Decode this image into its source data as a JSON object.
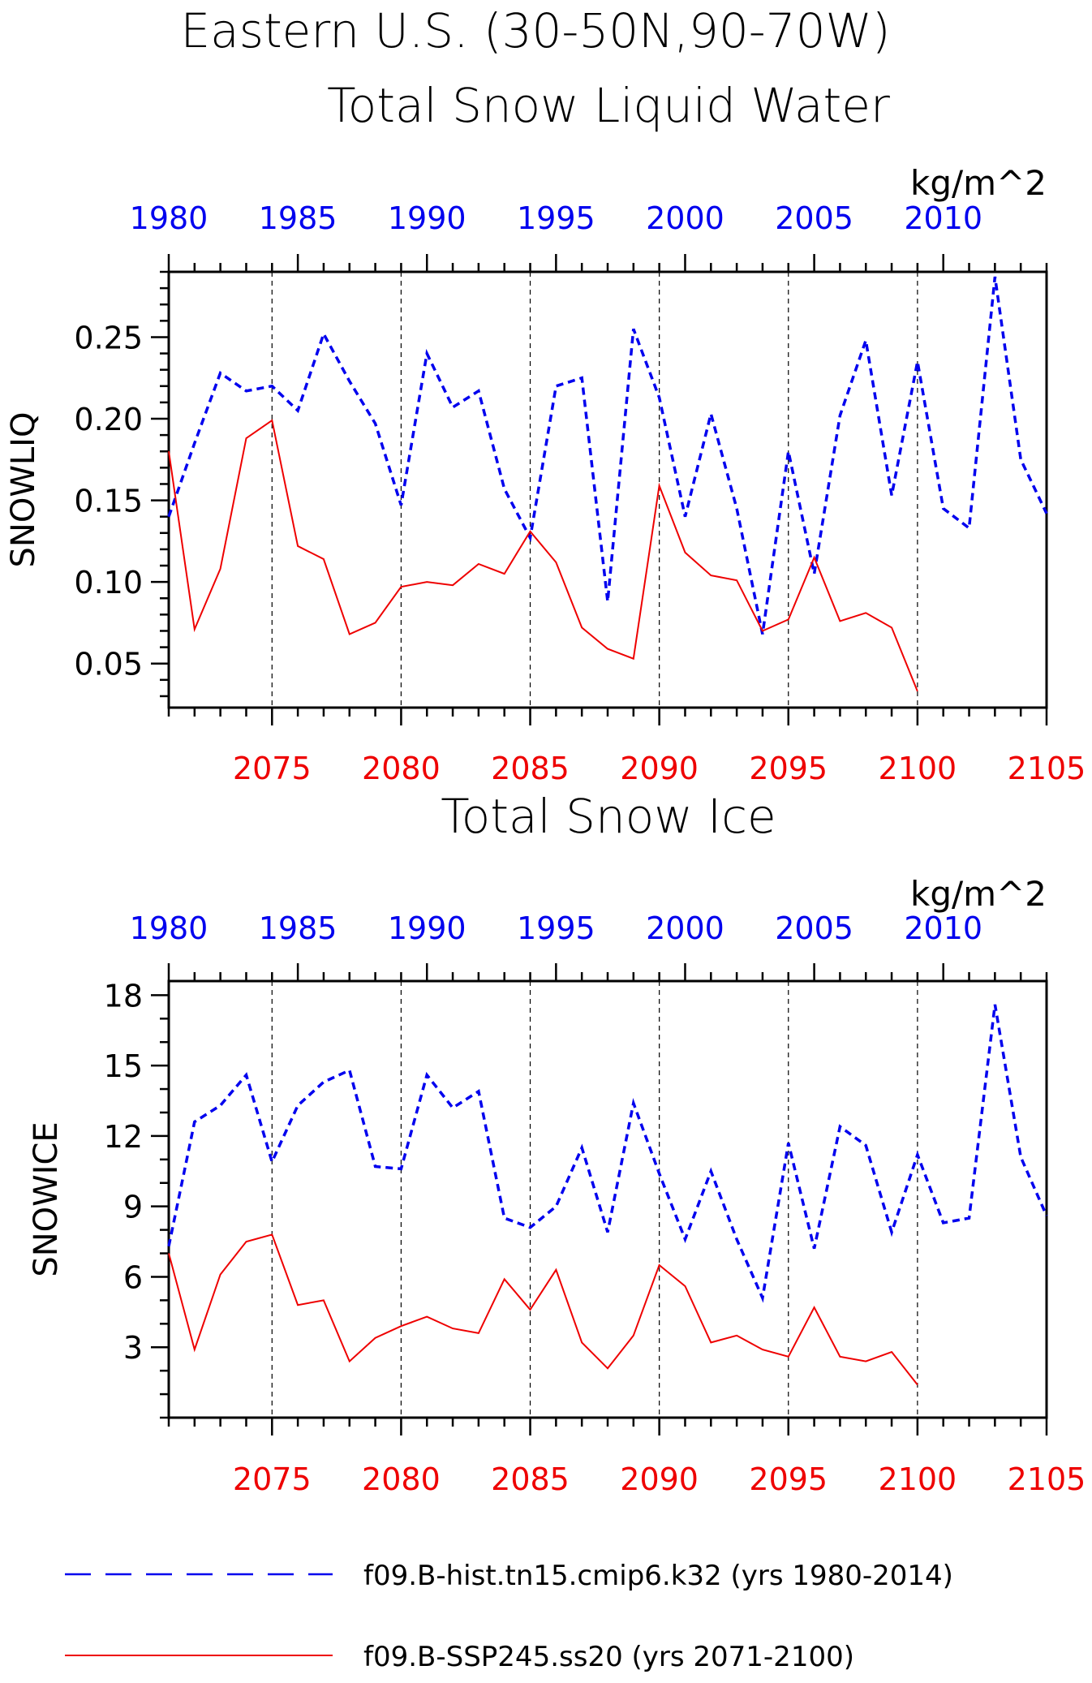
{
  "figure": {
    "title_line1": "Eastern U.S. (30-50N,90-70W)"
  },
  "colors": {
    "hist": "#0000ee",
    "ssp": "#ee0000",
    "axis": "#000000"
  },
  "legend": [
    {
      "label": "f09.B-hist.tn15.cmip6.k32 (yrs 1980-2014)",
      "color": "#0000ee",
      "style": "dashed"
    },
    {
      "label": "f09.B-SSP245.ss20 (yrs 2071-2100)",
      "color": "#ee0000",
      "style": "solid"
    }
  ],
  "chart_data": [
    {
      "type": "line",
      "title": "Total Snow Liquid Water",
      "units": "kg/m^2",
      "ylabel": "SNOWLIQ",
      "ylim": [
        0.023,
        0.29
      ],
      "yticks": [
        0.05,
        0.1,
        0.15,
        0.2,
        0.25
      ],
      "ytick_labels": [
        "0.05",
        "0.10",
        "0.15",
        "0.20",
        "0.25"
      ],
      "ytick_minor_step": 0.01,
      "grid_x": "dashed vertical at bottom-axis major ticks",
      "top_axis": {
        "range": [
          1980,
          2014
        ],
        "ticks": [
          1980,
          1985,
          1990,
          1995,
          2000,
          2005,
          2010
        ],
        "color": "#0000ee"
      },
      "bottom_axis": {
        "range": [
          2071,
          2105
        ],
        "ticks": [
          2075,
          2080,
          2085,
          2090,
          2095,
          2100,
          2105
        ],
        "color": "#ee0000"
      },
      "series": [
        {
          "name": "f09.B-hist.tn15.cmip6.k32 (yrs 1980-2014)",
          "axis": "top",
          "x": [
            1980,
            1981,
            1982,
            1983,
            1984,
            1985,
            1986,
            1987,
            1988,
            1989,
            1990,
            1991,
            1992,
            1993,
            1994,
            1995,
            1996,
            1997,
            1998,
            1999,
            2000,
            2001,
            2002,
            2003,
            2004,
            2005,
            2006,
            2007,
            2008,
            2009,
            2010,
            2011,
            2012,
            2013,
            2014
          ],
          "values": [
            0.14,
            0.185,
            0.228,
            0.217,
            0.22,
            0.205,
            0.252,
            0.223,
            0.197,
            0.147,
            0.24,
            0.207,
            0.217,
            0.157,
            0.127,
            0.22,
            0.225,
            0.088,
            0.255,
            0.213,
            0.14,
            0.203,
            0.145,
            0.068,
            0.18,
            0.105,
            0.202,
            0.248,
            0.153,
            0.235,
            0.145,
            0.133,
            0.287,
            0.175,
            0.142
          ]
        },
        {
          "name": "f09.B-SSP245.ss20 (yrs 2071-2100)",
          "axis": "bottom",
          "x": [
            2071,
            2072,
            2073,
            2074,
            2075,
            2076,
            2077,
            2078,
            2079,
            2080,
            2081,
            2082,
            2083,
            2084,
            2085,
            2086,
            2087,
            2088,
            2089,
            2090,
            2091,
            2092,
            2093,
            2094,
            2095,
            2096,
            2097,
            2098,
            2099,
            2100
          ],
          "values": [
            0.18,
            0.071,
            0.108,
            0.188,
            0.199,
            0.122,
            0.114,
            0.068,
            0.075,
            0.097,
            0.1,
            0.098,
            0.111,
            0.105,
            0.131,
            0.112,
            0.072,
            0.059,
            0.053,
            0.159,
            0.118,
            0.104,
            0.101,
            0.07,
            0.077,
            0.115,
            0.076,
            0.081,
            0.072,
            0.033
          ]
        }
      ]
    },
    {
      "type": "line",
      "title": "Total Snow Ice",
      "units": "kg/m^2",
      "ylabel": "SNOWICE",
      "ylim": [
        0,
        18.6
      ],
      "yticks": [
        3,
        6,
        9,
        12,
        15,
        18
      ],
      "ytick_labels": [
        "3",
        "6",
        "9",
        "12",
        "15",
        "18"
      ],
      "ytick_minor_step": 1,
      "grid_x": "dashed vertical at bottom-axis major ticks",
      "top_axis": {
        "range": [
          1980,
          2014
        ],
        "ticks": [
          1980,
          1985,
          1990,
          1995,
          2000,
          2005,
          2010
        ],
        "color": "#0000ee"
      },
      "bottom_axis": {
        "range": [
          2071,
          2105
        ],
        "ticks": [
          2075,
          2080,
          2085,
          2090,
          2095,
          2100,
          2105
        ],
        "color": "#ee0000"
      },
      "series": [
        {
          "name": "f09.B-hist.tn15.cmip6.k32 (yrs 1980-2014)",
          "axis": "top",
          "x": [
            1980,
            1981,
            1982,
            1983,
            1984,
            1985,
            1986,
            1987,
            1988,
            1989,
            1990,
            1991,
            1992,
            1993,
            1994,
            1995,
            1996,
            1997,
            1998,
            1999,
            2000,
            2001,
            2002,
            2003,
            2004,
            2005,
            2006,
            2007,
            2008,
            2009,
            2010,
            2011,
            2012,
            2013,
            2014
          ],
          "values": [
            7.3,
            12.6,
            13.3,
            14.6,
            10.9,
            13.3,
            14.3,
            14.8,
            10.7,
            10.6,
            14.6,
            13.2,
            13.9,
            8.5,
            8.1,
            9.0,
            11.5,
            7.9,
            13.4,
            10.4,
            7.6,
            10.5,
            7.6,
            5.1,
            11.7,
            7.2,
            12.4,
            11.6,
            7.9,
            11.2,
            8.3,
            8.5,
            17.6,
            11.1,
            8.6
          ]
        },
        {
          "name": "f09.B-SSP245.ss20 (yrs 2071-2100)",
          "axis": "bottom",
          "x": [
            2071,
            2072,
            2073,
            2074,
            2075,
            2076,
            2077,
            2078,
            2079,
            2080,
            2081,
            2082,
            2083,
            2084,
            2085,
            2086,
            2087,
            2088,
            2089,
            2090,
            2091,
            2092,
            2093,
            2094,
            2095,
            2096,
            2097,
            2098,
            2099,
            2100
          ],
          "values": [
            7.0,
            2.9,
            6.1,
            7.5,
            7.8,
            4.8,
            5.0,
            2.4,
            3.4,
            3.9,
            4.3,
            3.8,
            3.6,
            5.9,
            4.6,
            6.3,
            3.2,
            2.1,
            3.5,
            6.5,
            5.6,
            3.2,
            3.5,
            2.9,
            2.6,
            4.7,
            2.6,
            2.4,
            2.8,
            1.4
          ]
        }
      ]
    }
  ]
}
